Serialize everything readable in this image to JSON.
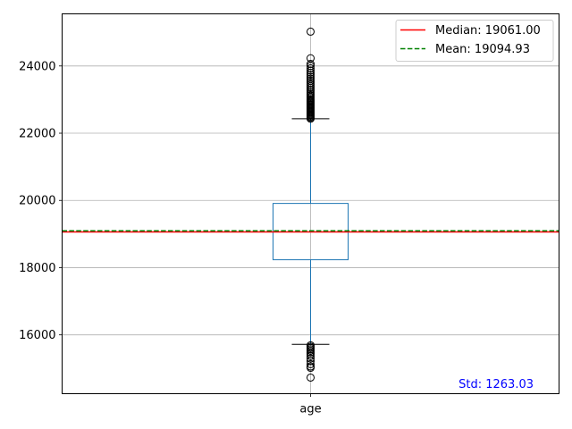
{
  "chart_data": {
    "type": "box",
    "category": "age",
    "ylim": [
      14250,
      25550
    ],
    "yticks": [
      16000,
      18000,
      20000,
      22000,
      24000
    ],
    "grid": true,
    "box": {
      "q1": 18235,
      "median": 19061,
      "q3": 19910,
      "whisker_low": 15720,
      "whisker_high": 22430,
      "color": "#1f77b4"
    },
    "outliers_high": [
      22430,
      22460,
      22490,
      22520,
      22550,
      22580,
      22610,
      22640,
      22670,
      22700,
      22730,
      22760,
      22790,
      22820,
      22850,
      22880,
      22910,
      22940,
      22970,
      23000,
      23040,
      23080,
      23120,
      23160,
      23200,
      23250,
      23300,
      23350,
      23400,
      23450,
      23500,
      23560,
      23620,
      23680,
      23740,
      23800,
      23860,
      23930,
      24000,
      24060,
      24230,
      25020
    ],
    "outliers_low": [
      15690,
      15650,
      15610,
      15570,
      15530,
      15480,
      15430,
      15370,
      15300,
      15220,
      15130,
      15060,
      15020,
      14730
    ],
    "lines": [
      {
        "label": "Median: 19061.00",
        "value": 19061.0,
        "color": "#ff0000",
        "style": "solid"
      },
      {
        "label": "Mean: 19094.93",
        "value": 19094.93,
        "color": "#008000",
        "style": "dashed"
      }
    ],
    "legend": {
      "position": "top-right",
      "items": [
        "Median: 19061.00",
        "Mean: 19094.93"
      ]
    },
    "annotation": {
      "text": "Std: 1263.03",
      "color": "#0000ff",
      "position": "bottom-right"
    }
  }
}
